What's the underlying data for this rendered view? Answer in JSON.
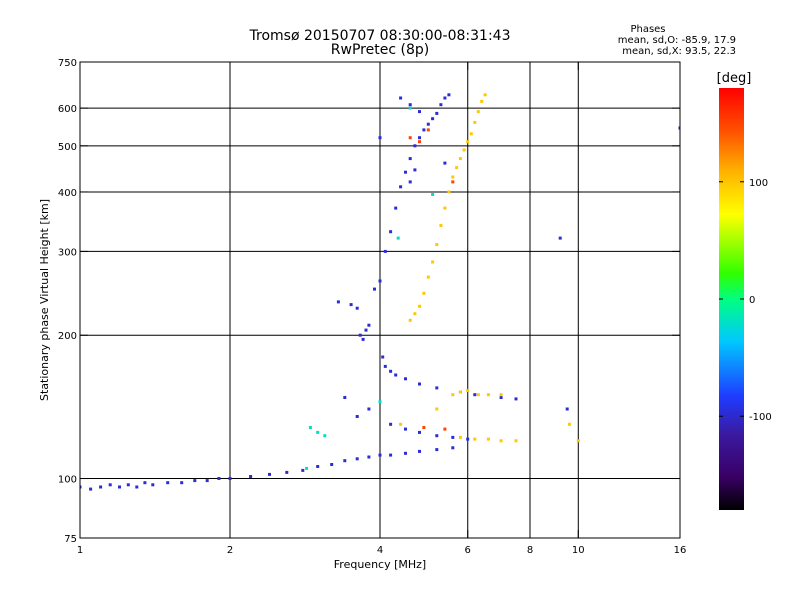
{
  "chart_data": {
    "type": "scatter",
    "title": "Tromsø 20150707 08:30:00-08:31:43",
    "subtitle": "RwPretec (8p)",
    "xlabel": "Frequency [MHz]",
    "ylabel": "Stationary phase Virtual Height [km]",
    "x_scale": "log",
    "y_scale": "log",
    "xlim": [
      1,
      16
    ],
    "ylim": [
      75,
      750
    ],
    "grid": true,
    "x_ticks": [
      1,
      2,
      4,
      6,
      8,
      10,
      16
    ],
    "y_ticks": [
      75,
      100,
      200,
      300,
      400,
      500,
      600,
      750
    ],
    "x_grid": [
      2,
      4,
      6,
      8,
      10
    ],
    "y_grid": [
      100,
      200,
      300,
      400,
      500,
      600
    ],
    "stats": {
      "heading": "Phases",
      "line_o": "mean, sd,O: -85.9, 17.9",
      "line_x": "mean, sd,X:  93.5, 22.3"
    },
    "colorbar": {
      "label": "[deg]",
      "range": [
        -180,
        180
      ],
      "ticks": [
        100,
        0,
        -100
      ],
      "palette": "rainbow"
    },
    "series": [
      {
        "phase_deg": -95,
        "points": [
          [
            1.0,
            96
          ],
          [
            1.05,
            95
          ],
          [
            1.1,
            96
          ],
          [
            1.15,
            97
          ],
          [
            1.2,
            96
          ],
          [
            1.25,
            97
          ],
          [
            1.3,
            96
          ],
          [
            1.35,
            98
          ],
          [
            1.4,
            97
          ],
          [
            1.5,
            98
          ],
          [
            1.6,
            98
          ],
          [
            1.7,
            99
          ],
          [
            1.8,
            99
          ],
          [
            1.9,
            100
          ],
          [
            2.0,
            100
          ],
          [
            2.2,
            101
          ],
          [
            2.4,
            102
          ],
          [
            2.6,
            103
          ],
          [
            2.8,
            104
          ],
          [
            3.0,
            106
          ],
          [
            3.2,
            107
          ],
          [
            3.4,
            109
          ],
          [
            3.6,
            110
          ],
          [
            3.8,
            111
          ],
          [
            4.0,
            112
          ],
          [
            4.2,
            112
          ],
          [
            4.5,
            113
          ],
          [
            4.8,
            114
          ],
          [
            5.2,
            115
          ],
          [
            5.6,
            116
          ],
          [
            3.3,
            235
          ],
          [
            3.5,
            232
          ],
          [
            3.6,
            228
          ],
          [
            3.65,
            200
          ],
          [
            3.7,
            196
          ],
          [
            3.75,
            205
          ],
          [
            3.8,
            210
          ],
          [
            3.9,
            250
          ],
          [
            4.0,
            260
          ],
          [
            4.1,
            300
          ],
          [
            4.2,
            330
          ],
          [
            4.3,
            370
          ],
          [
            4.4,
            410
          ],
          [
            4.5,
            440
          ],
          [
            4.6,
            470
          ],
          [
            4.7,
            500
          ],
          [
            4.8,
            520
          ],
          [
            4.9,
            540
          ],
          [
            5.0,
            555
          ],
          [
            5.1,
            570
          ],
          [
            5.2,
            585
          ],
          [
            5.3,
            610
          ],
          [
            5.4,
            630
          ],
          [
            5.5,
            640
          ],
          [
            4.6,
            420
          ],
          [
            4.7,
            445
          ],
          [
            4.05,
            180
          ],
          [
            4.1,
            172
          ],
          [
            4.2,
            168
          ],
          [
            4.3,
            165
          ],
          [
            4.5,
            162
          ],
          [
            4.8,
            158
          ],
          [
            5.2,
            155
          ],
          [
            5.8,
            152
          ],
          [
            6.2,
            150
          ],
          [
            7.0,
            148
          ],
          [
            7.5,
            147
          ],
          [
            4.2,
            130
          ],
          [
            4.5,
            127
          ],
          [
            4.8,
            125
          ],
          [
            5.2,
            123
          ],
          [
            5.6,
            122
          ],
          [
            6.0,
            121
          ],
          [
            3.4,
            148
          ],
          [
            3.6,
            135
          ],
          [
            3.8,
            140
          ],
          [
            4.4,
            630
          ],
          [
            4.6,
            610
          ],
          [
            4.8,
            590
          ],
          [
            4.0,
            520
          ],
          [
            5.4,
            460
          ],
          [
            9.5,
            140
          ],
          [
            16.0,
            545
          ],
          [
            9.2,
            320
          ]
        ]
      },
      {
        "phase_deg": 98,
        "points": [
          [
            4.6,
            215
          ],
          [
            4.7,
            222
          ],
          [
            4.8,
            230
          ],
          [
            4.9,
            245
          ],
          [
            5.0,
            265
          ],
          [
            5.1,
            285
          ],
          [
            5.2,
            310
          ],
          [
            5.3,
            340
          ],
          [
            5.4,
            370
          ],
          [
            5.5,
            400
          ],
          [
            5.6,
            430
          ],
          [
            5.7,
            450
          ],
          [
            5.8,
            470
          ],
          [
            5.9,
            490
          ],
          [
            6.0,
            510
          ],
          [
            6.1,
            530
          ],
          [
            6.2,
            560
          ],
          [
            6.3,
            590
          ],
          [
            6.4,
            620
          ],
          [
            6.5,
            640
          ],
          [
            5.6,
            150
          ],
          [
            5.8,
            152
          ],
          [
            6.0,
            153
          ],
          [
            6.3,
            150
          ],
          [
            6.6,
            150
          ],
          [
            7.0,
            150
          ],
          [
            5.8,
            122
          ],
          [
            6.2,
            121
          ],
          [
            6.6,
            121
          ],
          [
            7.0,
            120
          ],
          [
            7.5,
            120
          ],
          [
            5.2,
            140
          ],
          [
            4.4,
            130
          ],
          [
            10.0,
            120
          ],
          [
            9.6,
            130
          ]
        ]
      },
      {
        "phase_deg": 150,
        "points": [
          [
            4.6,
            520
          ],
          [
            4.8,
            510
          ],
          [
            5.6,
            420
          ],
          [
            5.0,
            540
          ],
          [
            4.9,
            128
          ],
          [
            5.4,
            127
          ]
        ]
      },
      {
        "phase_deg": -20,
        "points": [
          [
            2.9,
            128
          ],
          [
            3.0,
            125
          ],
          [
            3.1,
            123
          ],
          [
            2.85,
            105
          ],
          [
            4.0,
            145
          ],
          [
            4.6,
            600
          ],
          [
            5.1,
            395
          ],
          [
            4.35,
            320
          ]
        ]
      }
    ]
  }
}
